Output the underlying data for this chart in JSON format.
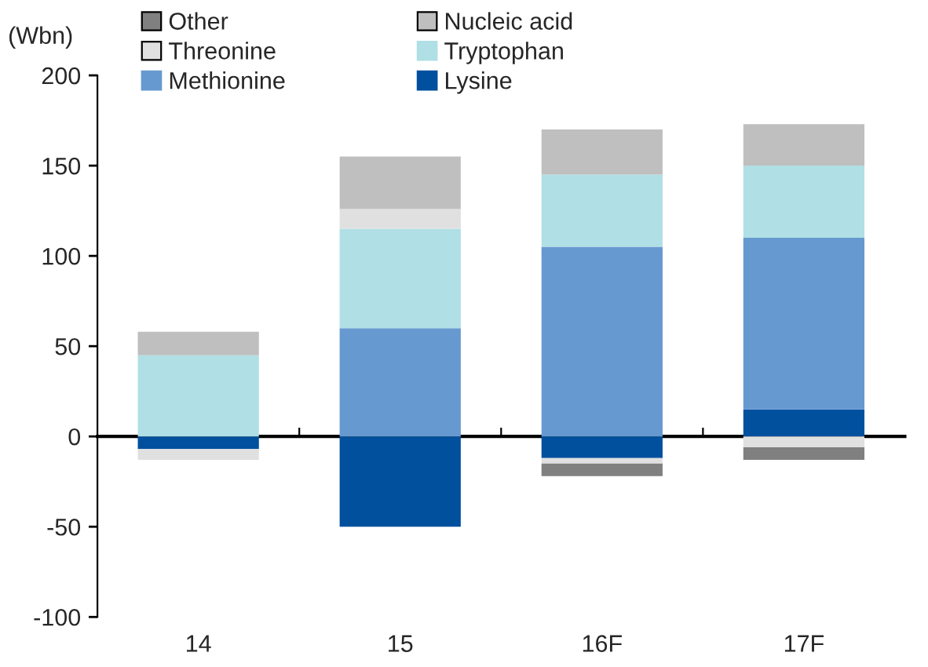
{
  "chart_data": {
    "type": "bar",
    "stacked": true,
    "ylabel": "(Wbn)",
    "categories": [
      "14",
      "15",
      "16F",
      "17F"
    ],
    "series": [
      {
        "name": "Lysine",
        "color": "#00509e",
        "values": [
          -7,
          -50,
          -12,
          15
        ]
      },
      {
        "name": "Methionine",
        "color": "#6699d0",
        "values": [
          0,
          60,
          105,
          95
        ]
      },
      {
        "name": "Tryptophan",
        "color": "#b0dfe5",
        "values": [
          45,
          55,
          40,
          40
        ]
      },
      {
        "name": "Threonine",
        "color": "#e0e0e0",
        "values": [
          -6,
          11,
          -3,
          -6
        ]
      },
      {
        "name": "Nucleic acid",
        "color": "#bfbfbf",
        "values": [
          13,
          29,
          25,
          23
        ]
      },
      {
        "name": "Other",
        "color": "#808080",
        "values": [
          0,
          0,
          -7,
          -7
        ]
      }
    ],
    "ylim": [
      -100,
      200
    ],
    "yticks": [
      -100,
      -50,
      0,
      50,
      100,
      150,
      200
    ],
    "legend": "top left"
  }
}
